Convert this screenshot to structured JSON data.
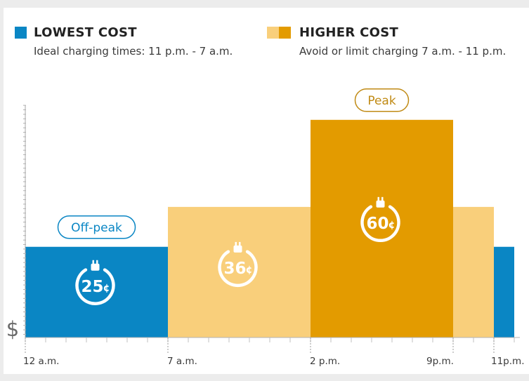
{
  "legend": {
    "lowest": {
      "title": "LOWEST COST",
      "description": "Ideal charging times: 11 p.m. - 7 a.m.",
      "color": "#0a86c4"
    },
    "higher": {
      "title": "HIGHER COST",
      "description": "Avoid or limit charging 7 a.m. - 11 p.m.",
      "color_light": "#f9cf7b",
      "color_dark": "#e39b00"
    }
  },
  "chart_data": {
    "type": "bar",
    "title": "",
    "x_ticks": [
      {
        "label": "12 a.m.",
        "hour": 0
      },
      {
        "label": "7 a.m.",
        "hour": 7
      },
      {
        "label": "2 p.m.",
        "hour": 14
      },
      {
        "label": "9p.m.",
        "hour": 21
      },
      {
        "label": "11p.m.",
        "hour": 23
      }
    ],
    "y_axis_label": "$",
    "xlim": [
      0,
      24
    ],
    "ylim": [
      0,
      64
    ],
    "segments": [
      {
        "start_hour": 0,
        "end_hour": 7,
        "price_cents": 25,
        "tier": "off-peak",
        "color": "#0a86c4",
        "price_label": "25"
      },
      {
        "start_hour": 7,
        "end_hour": 14,
        "price_cents": 36,
        "tier": "mid",
        "color": "#f9cf7b",
        "price_label": "36"
      },
      {
        "start_hour": 14,
        "end_hour": 21,
        "price_cents": 60,
        "tier": "peak",
        "color": "#e39b00",
        "price_label": "60"
      },
      {
        "start_hour": 21,
        "end_hour": 23,
        "price_cents": 36,
        "tier": "mid",
        "color": "#f9cf7b"
      },
      {
        "start_hour": 23,
        "end_hour": 24,
        "price_cents": 25,
        "tier": "off-peak",
        "color": "#0a86c4"
      }
    ],
    "cent_symbol": "¢",
    "annotations": [
      {
        "text": "Off-peak",
        "segment": 0,
        "color": "#0a86c4"
      },
      {
        "text": "Peak",
        "segment": 2,
        "color": "#c08a14"
      }
    ]
  }
}
